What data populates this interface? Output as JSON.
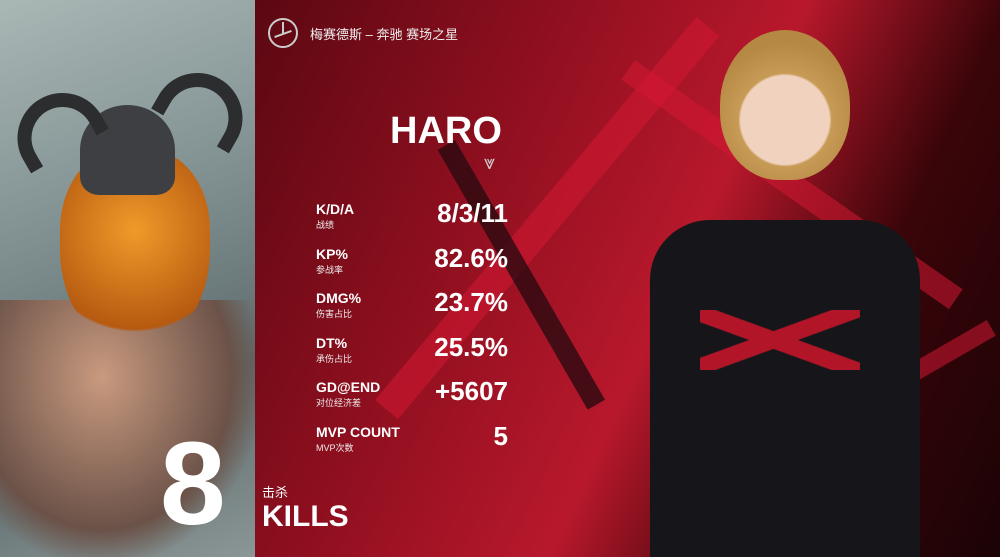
{
  "sponsor": {
    "icon": "mercedes-benz-logo-icon",
    "text": "梅赛德斯 – 奔驰 赛场之星"
  },
  "player": {
    "name": "HARO",
    "team_icon": "rng-logo-icon"
  },
  "stats": [
    {
      "label": "K/D/A",
      "sub": "战绩",
      "value": "8/3/11"
    },
    {
      "label": "KP%",
      "sub": "参战率",
      "value": "82.6%"
    },
    {
      "label": "DMG%",
      "sub": "伤害占比",
      "value": "23.7%"
    },
    {
      "label": "DT%",
      "sub": "承伤占比",
      "value": "25.5%"
    },
    {
      "label": "GD@END",
      "sub": "对位经济差",
      "value": "+5607"
    },
    {
      "label": "MVP COUNT",
      "sub": "MVP次数",
      "value": "5"
    }
  ],
  "kills": {
    "number": "8",
    "cn": "击杀",
    "label": "KILLS"
  },
  "colors": {
    "accent": "#c8172e",
    "dark": "#2a0508"
  }
}
